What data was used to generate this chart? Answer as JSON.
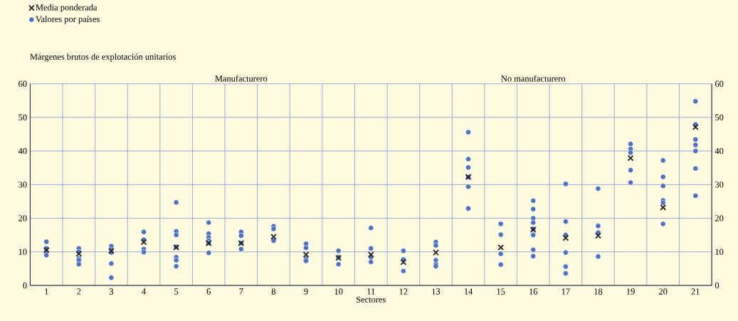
{
  "chart_data": {
    "type": "scatter",
    "xlabel": "Sectores",
    "ylabel": "Márgenes brutos de explotación unitarios",
    "categories": [
      "1",
      "2",
      "3",
      "4",
      "5",
      "6",
      "7",
      "8",
      "9",
      "10",
      "11",
      "12",
      "13",
      "14",
      "15",
      "16",
      "17",
      "18",
      "19",
      "20",
      "21"
    ],
    "series": [
      {
        "name": "Media ponderada",
        "color": "#222222",
        "marker": "cross",
        "x": [
          "1",
          "2",
          "3",
          "4",
          "5",
          "6",
          "7",
          "8",
          "9",
          "10",
          "11",
          "12",
          "13",
          "14",
          "15",
          "16",
          "17",
          "18",
          "19",
          "20",
          "21"
        ],
        "values": [
          10.5,
          9.4,
          10.3,
          12.9,
          11.3,
          12.6,
          12.6,
          14.5,
          9.2,
          8.2,
          9.2,
          6.9,
          9.8,
          32.3,
          11.3,
          16.6,
          14.1,
          14.8,
          37.9,
          23.2,
          47.1
        ]
      },
      {
        "name": "Valores por países",
        "color": "#4e72c0",
        "marker": "circle",
        "x": [
          "1",
          "1",
          "1",
          "1",
          "2",
          "2",
          "2",
          "2",
          "2",
          "3",
          "3",
          "3",
          "3",
          "3",
          "4",
          "4",
          "4",
          "4",
          "5",
          "5",
          "5",
          "5",
          "5",
          "5",
          "5",
          "6",
          "6",
          "6",
          "6",
          "6",
          "6",
          "7",
          "7",
          "7",
          "7",
          "8",
          "8",
          "8",
          "9",
          "9",
          "9",
          "9",
          "10",
          "10",
          "10",
          "11",
          "11",
          "11",
          "11",
          "12",
          "12",
          "12",
          "13",
          "13",
          "13",
          "13",
          "13",
          "14",
          "14",
          "14",
          "14",
          "14",
          "14",
          "15",
          "15",
          "15",
          "15",
          "16",
          "16",
          "16",
          "16",
          "16",
          "16",
          "16",
          "16",
          "17",
          "17",
          "17",
          "17",
          "17",
          "17",
          "18",
          "18",
          "18",
          "18",
          "19",
          "19",
          "19",
          "19",
          "19",
          "20",
          "20",
          "20",
          "20",
          "20",
          "20",
          "21",
          "21",
          "21",
          "21",
          "21",
          "21",
          "21"
        ],
        "values": [
          13,
          11,
          10,
          9,
          11,
          10,
          8,
          7.5,
          6.3,
          11.7,
          10.5,
          9.8,
          6.5,
          2.3,
          15.9,
          13.6,
          10.8,
          9.9,
          24.7,
          16.1,
          15,
          11.5,
          8.4,
          7.5,
          5.7,
          18.7,
          15.4,
          14.3,
          13.3,
          12.6,
          9.7,
          15.9,
          14.8,
          12.6,
          10.8,
          17.6,
          16.8,
          13.3,
          12.4,
          11.2,
          8,
          7.3,
          10.3,
          8.4,
          6.3,
          17.1,
          11,
          8.4,
          7,
          10.3,
          7.7,
          4.3,
          12.9,
          11.9,
          7.5,
          6.3,
          5.7,
          45.6,
          37.6,
          35.1,
          32.2,
          29.4,
          22.9,
          18.3,
          15.1,
          9.4,
          6.2,
          25.2,
          22.7,
          20,
          18.7,
          16.8,
          15,
          10.6,
          8.7,
          30.2,
          19,
          15,
          9.8,
          5.6,
          3.6,
          28.8,
          17.7,
          15.7,
          8.6,
          42.1,
          40.6,
          39.5,
          34.3,
          30.6,
          37.2,
          32.3,
          29.6,
          25.3,
          24.6,
          18.3,
          54.8,
          47.9,
          43.4,
          41.8,
          40,
          34.8,
          26.7
        ]
      }
    ],
    "ylim": [
      0,
      60
    ],
    "yticks": [
      0,
      10,
      20,
      30,
      40,
      50,
      60
    ],
    "y2lim": [
      0,
      60
    ],
    "y2ticks": [
      0,
      10,
      20,
      30,
      40,
      50,
      60
    ],
    "grid": true,
    "legend": "top left",
    "annotations": [
      "Manufacturero",
      "No manufacturero"
    ]
  }
}
